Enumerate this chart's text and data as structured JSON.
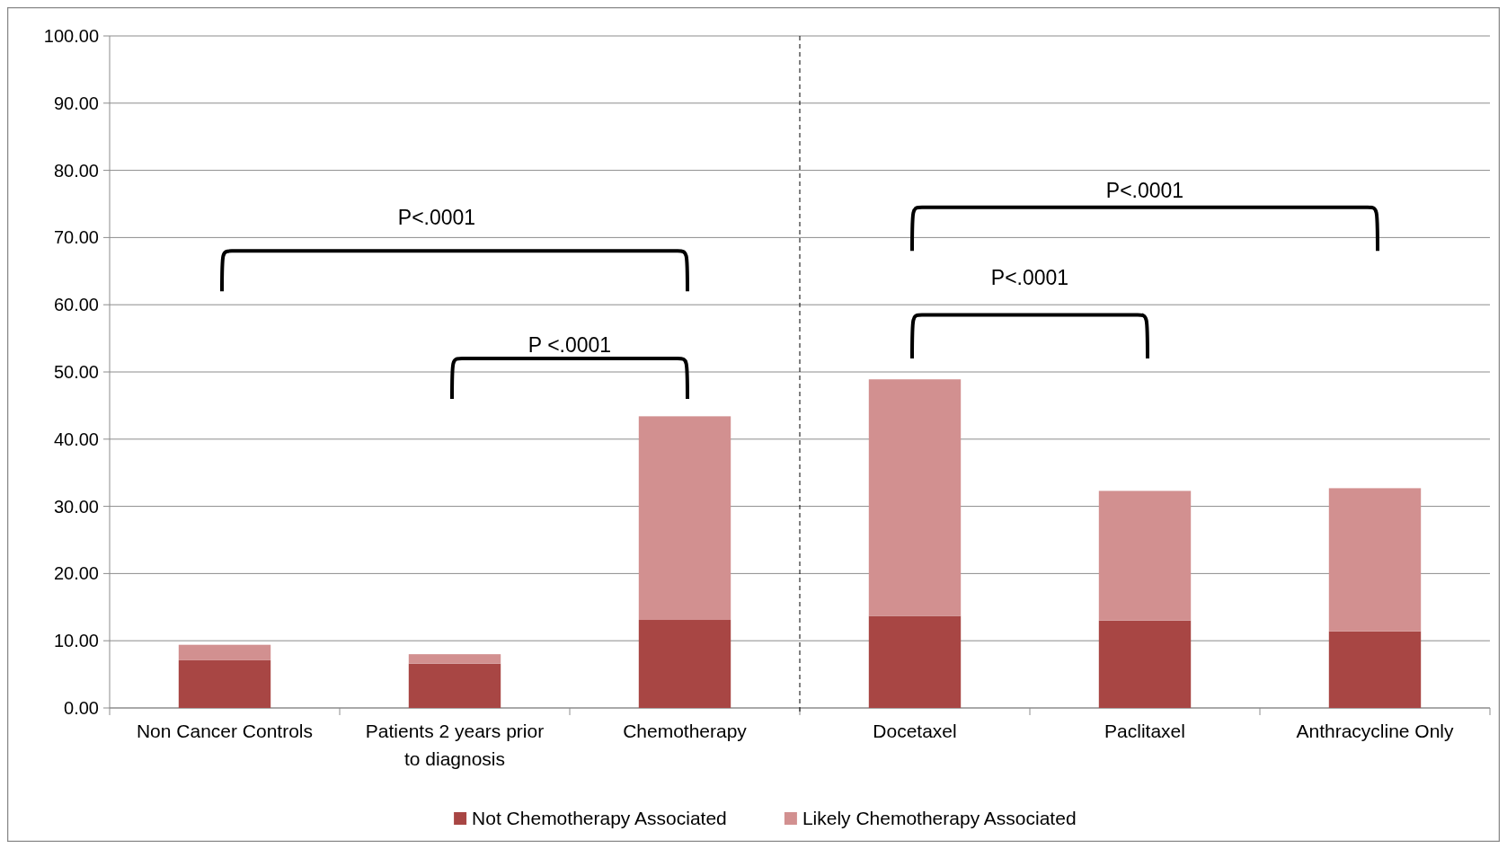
{
  "chart_data": {
    "type": "bar",
    "stacked": true,
    "categories": [
      "Non Cancer Controls",
      "Patients 2 years prior to diagnosis",
      "Chemotherapy",
      "Docetaxel",
      "Paclitaxel",
      "Anthracycline Only"
    ],
    "series": [
      {
        "name": "Not Chemotherapy Associated",
        "color": "#a84644",
        "values": [
          7.1,
          6.6,
          13.1,
          13.7,
          13.0,
          11.4
        ]
      },
      {
        "name": "Likely Chemotherapy Associated",
        "color": "#d29090",
        "values": [
          2.3,
          1.4,
          30.3,
          35.2,
          19.3,
          21.3
        ]
      }
    ],
    "ylim": [
      0,
      100
    ],
    "yticks": [
      {
        "value": 0,
        "label": "0.00"
      },
      {
        "value": 10,
        "label": "10.00"
      },
      {
        "value": 20,
        "label": "20.00"
      },
      {
        "value": 30,
        "label": "30.00"
      },
      {
        "value": 40,
        "label": "40.00"
      },
      {
        "value": 50,
        "label": "50.00"
      },
      {
        "value": 60,
        "label": "60.00"
      },
      {
        "value": 70,
        "label": "70.00"
      },
      {
        "value": 80,
        "label": "80.00"
      },
      {
        "value": 90,
        "label": "90.00"
      },
      {
        "value": 100,
        "label": "100.00"
      }
    ],
    "grid": "y",
    "legend": "bottom",
    "annotations": [
      "P<.0001",
      "P <.0001",
      "P<.0001",
      "P<.0001"
    ]
  }
}
